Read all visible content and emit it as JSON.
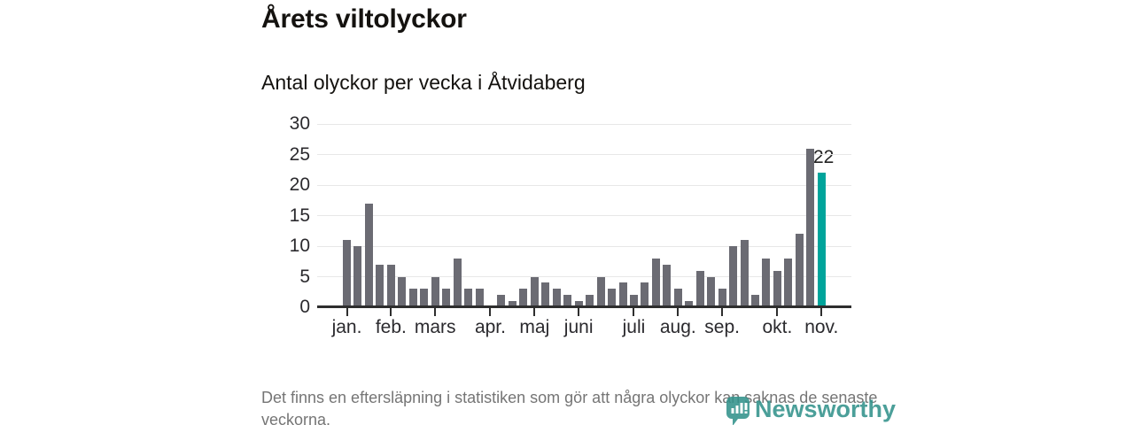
{
  "header": {
    "title": "Årets viltolyckor",
    "subtitle": "Antal olyckor per vecka i Åtvidaberg"
  },
  "chart_data": {
    "type": "bar",
    "title": "Årets viltolyckor",
    "subtitle": "Antal olyckor per vecka i Åtvidaberg",
    "xlabel": "",
    "ylabel": "",
    "x_unit": "vecka",
    "ylim": [
      0,
      30
    ],
    "grid": true,
    "legend": "none",
    "y_ticks": [
      0,
      5,
      10,
      15,
      20,
      25,
      30
    ],
    "values": [
      11,
      10,
      17,
      7,
      7,
      5,
      3,
      3,
      5,
      3,
      8,
      3,
      3,
      0,
      2,
      1,
      3,
      5,
      4,
      3,
      2,
      1,
      2,
      5,
      3,
      4,
      2,
      4,
      8,
      7,
      3,
      1,
      6,
      5,
      3,
      10,
      11,
      2,
      8,
      6,
      8,
      12,
      26,
      22
    ],
    "month_ticks": [
      {
        "label": "jan.",
        "index": 0
      },
      {
        "label": "feb.",
        "index": 4
      },
      {
        "label": "mars",
        "index": 8
      },
      {
        "label": "apr.",
        "index": 13
      },
      {
        "label": "maj",
        "index": 17
      },
      {
        "label": "juni",
        "index": 21
      },
      {
        "label": "juli",
        "index": 26
      },
      {
        "label": "aug.",
        "index": 30
      },
      {
        "label": "sep.",
        "index": 34
      },
      {
        "label": "okt.",
        "index": 39
      },
      {
        "label": "nov.",
        "index": 43
      }
    ],
    "highlight": {
      "index": 43,
      "value": 22,
      "label": "22"
    },
    "colors": {
      "bar": "#6b6b73",
      "highlight": "#00a49b",
      "grid": "#e7e7e7",
      "axis": "#2e2e2e"
    }
  },
  "footer": {
    "note": "Det finns en eftersläpning i statistiken som gör att några olyckor kan saknas de senaste veckorna.",
    "brand": "Newsworthy"
  }
}
